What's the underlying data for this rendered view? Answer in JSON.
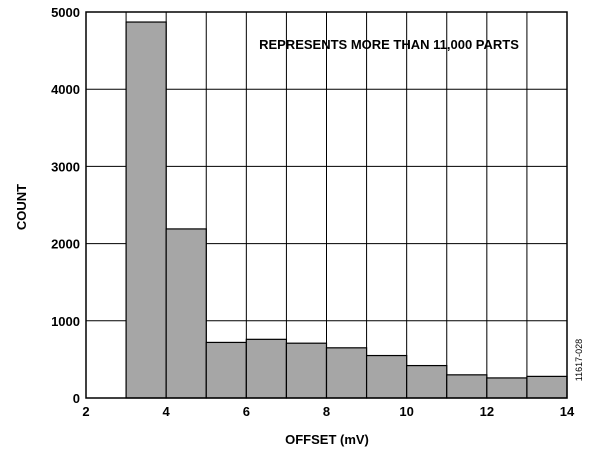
{
  "chart_data": {
    "type": "bar",
    "title": "",
    "xlabel": "OFFSET (mV)",
    "ylabel": "COUNT",
    "annotation": "REPRESENTS MORE THAN 11,000 PARTS",
    "figure_id": "11617-028",
    "xlim": [
      2,
      14
    ],
    "ylim": [
      0,
      5000
    ],
    "xticks": [
      2,
      4,
      6,
      8,
      10,
      12,
      14
    ],
    "yticks": [
      0,
      1000,
      2000,
      3000,
      4000,
      5000
    ],
    "grid": true,
    "bin_width": 1,
    "bins": [
      {
        "start": 3,
        "end": 4,
        "count": 4870
      },
      {
        "start": 4,
        "end": 5,
        "count": 2190
      },
      {
        "start": 5,
        "end": 6,
        "count": 720
      },
      {
        "start": 6,
        "end": 7,
        "count": 760
      },
      {
        "start": 7,
        "end": 8,
        "count": 710
      },
      {
        "start": 8,
        "end": 9,
        "count": 650
      },
      {
        "start": 9,
        "end": 10,
        "count": 550
      },
      {
        "start": 10,
        "end": 11,
        "count": 420
      },
      {
        "start": 11,
        "end": 12,
        "count": 300
      },
      {
        "start": 12,
        "end": 13,
        "count": 260
      },
      {
        "start": 13,
        "end": 14,
        "count": 280
      }
    ],
    "colors": {
      "bar_fill": "#a6a6a6",
      "bar_stroke": "#000000",
      "grid": "#000000"
    }
  }
}
